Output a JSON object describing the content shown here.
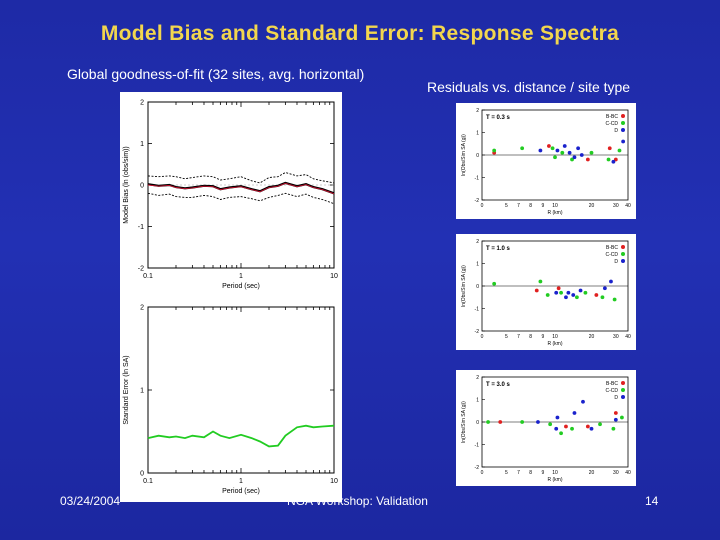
{
  "slide": {
    "title": "Model Bias and Standard Error:  Response Spectra",
    "subtitle_left": "Global goodness-of-fit (32 sites, avg. horizontal)",
    "subtitle_right": "Residuals vs. distance / site type",
    "footer_date": "03/24/2004",
    "footer_event": "NGA Workshop: Validation",
    "footer_page": "14"
  },
  "colors": {
    "background": "#1e2aa6",
    "title": "#f2d64e",
    "bias_line": "#000000",
    "bias_mean": "#c8102e",
    "stderr_line": "#22cc22",
    "site_BC": "#e02020",
    "site_CD": "#22cc22",
    "site_D": "#1a22cc"
  },
  "chart_data": [
    {
      "type": "line",
      "panel": "bias",
      "xlabel": "Period (sec)",
      "ylabel": "Model Bias (ln (obs/sim))",
      "x_scale": "log",
      "xlim": [
        0.1,
        10
      ],
      "ylim": [
        -2,
        2
      ],
      "xticks": [
        "0.1",
        "1",
        "10"
      ],
      "yticks": [
        "2",
        "1",
        "0",
        "-1",
        "-2"
      ],
      "x": [
        0.1,
        0.13,
        0.17,
        0.2,
        0.25,
        0.3,
        0.4,
        0.5,
        0.6,
        0.75,
        1.0,
        1.3,
        1.6,
        2.0,
        2.5,
        3.0,
        4.0,
        5.0,
        6.0,
        7.5,
        10.0
      ],
      "series": [
        {
          "role": "bias",
          "values": [
            0.02,
            -0.02,
            0.0,
            -0.05,
            -0.08,
            -0.06,
            -0.02,
            -0.03,
            -0.1,
            -0.06,
            -0.03,
            -0.1,
            -0.15,
            -0.05,
            -0.02,
            0.05,
            -0.03,
            0.02,
            -0.05,
            -0.1,
            -0.2
          ]
        },
        {
          "role": "upper",
          "values": [
            0.22,
            0.2,
            0.22,
            0.2,
            0.15,
            0.18,
            0.22,
            0.2,
            0.12,
            0.15,
            0.2,
            0.1,
            0.05,
            0.18,
            0.2,
            0.3,
            0.22,
            0.25,
            0.15,
            0.1,
            0.05
          ]
        },
        {
          "role": "lower",
          "values": [
            -0.2,
            -0.25,
            -0.22,
            -0.28,
            -0.3,
            -0.3,
            -0.25,
            -0.28,
            -0.35,
            -0.3,
            -0.28,
            -0.33,
            -0.38,
            -0.3,
            -0.25,
            -0.2,
            -0.28,
            -0.22,
            -0.3,
            -0.35,
            -0.45
          ]
        },
        {
          "role": "mean",
          "values": [
            0.0,
            -0.03,
            -0.01,
            -0.06,
            -0.09,
            -0.07,
            -0.03,
            -0.04,
            -0.11,
            -0.07,
            -0.04,
            -0.11,
            -0.16,
            -0.06,
            -0.03,
            0.04,
            -0.04,
            0.01,
            -0.06,
            -0.11,
            -0.21
          ]
        }
      ]
    },
    {
      "type": "line",
      "panel": "stderr",
      "xlabel": "Period (sec)",
      "ylabel": "Standard Error (ln SA)",
      "x_scale": "log",
      "xlim": [
        0.1,
        10
      ],
      "ylim": [
        0,
        2
      ],
      "xticks": [
        "0.1",
        "1",
        "10"
      ],
      "yticks": [
        "2",
        "1",
        "0"
      ],
      "x": [
        0.1,
        0.13,
        0.17,
        0.2,
        0.25,
        0.3,
        0.4,
        0.5,
        0.6,
        0.75,
        1.0,
        1.3,
        1.6,
        2.0,
        2.5,
        3.0,
        4.0,
        5.0,
        6.0,
        7.5,
        10.0
      ],
      "series": [
        {
          "role": "stderr",
          "values": [
            0.42,
            0.45,
            0.43,
            0.44,
            0.42,
            0.45,
            0.43,
            0.5,
            0.45,
            0.42,
            0.46,
            0.42,
            0.38,
            0.32,
            0.33,
            0.45,
            0.55,
            0.57,
            0.55,
            0.56,
            0.57
          ]
        }
      ]
    },
    {
      "type": "scatter",
      "panel": "resid1",
      "annotation": "T = 0.3 s",
      "xlabel": "R (km)",
      "ylabel": "ln(Obs/Sim SA (g))",
      "xlim": [
        0,
        12
      ],
      "ylim": [
        -2,
        2
      ],
      "xticks": [
        "0",
        "5",
        "7",
        "8",
        "9",
        "10",
        "20",
        "30",
        "40"
      ],
      "yticks": [
        "2",
        "1",
        "0",
        "-1",
        "-2"
      ],
      "legend": [
        "B-BC",
        "C-CD",
        "D"
      ],
      "points": {
        "B-BC": [
          [
            1,
            0.1
          ],
          [
            5.5,
            0.4
          ],
          [
            8.7,
            -0.2
          ],
          [
            10.5,
            0.3
          ],
          [
            11,
            -0.2
          ]
        ],
        "C-CD": [
          [
            1,
            0.2
          ],
          [
            3.3,
            0.3
          ],
          [
            5.8,
            0.3
          ],
          [
            6,
            -0.1
          ],
          [
            6.6,
            0.1
          ],
          [
            7.4,
            -0.2
          ],
          [
            9,
            0.1
          ],
          [
            10.4,
            -0.2
          ],
          [
            11.3,
            0.2
          ]
        ],
        "D": [
          [
            4.8,
            0.2
          ],
          [
            6.2,
            0.2
          ],
          [
            6.8,
            0.4
          ],
          [
            7.2,
            0.1
          ],
          [
            7.6,
            -0.1
          ],
          [
            7.9,
            0.3
          ],
          [
            8.2,
            0.0
          ],
          [
            10.8,
            -0.3
          ],
          [
            11.6,
            0.6
          ]
        ]
      }
    },
    {
      "type": "scatter",
      "panel": "resid2",
      "annotation": "T = 1.0 s",
      "xlabel": "R (km)",
      "ylabel": "ln(Obs/Sim SA (g))",
      "xlim": [
        0,
        12
      ],
      "ylim": [
        -2,
        2
      ],
      "xticks": [
        "0",
        "5",
        "7",
        "8",
        "9",
        "10",
        "20",
        "30",
        "40"
      ],
      "yticks": [
        "2",
        "1",
        "0",
        "-1",
        "-2"
      ],
      "legend": [
        "B-BC",
        "C-CD",
        "D"
      ],
      "points": {
        "B-BC": [
          [
            4.5,
            -0.2
          ],
          [
            6.3,
            -0.1
          ],
          [
            9.4,
            -0.4
          ]
        ],
        "C-CD": [
          [
            1,
            0.1
          ],
          [
            4.8,
            0.2
          ],
          [
            5.4,
            -0.4
          ],
          [
            6.5,
            -0.3
          ],
          [
            7.8,
            -0.5
          ],
          [
            8.5,
            -0.3
          ],
          [
            9.9,
            -0.5
          ],
          [
            10.9,
            -0.6
          ]
        ],
        "D": [
          [
            6.1,
            -0.3
          ],
          [
            6.9,
            -0.5
          ],
          [
            7.1,
            -0.3
          ],
          [
            7.5,
            -0.4
          ],
          [
            8.1,
            -0.2
          ],
          [
            10.1,
            -0.1
          ],
          [
            10.6,
            0.2
          ]
        ]
      }
    },
    {
      "type": "scatter",
      "panel": "resid3",
      "annotation": "T = 3.0 s",
      "xlabel": "R (km)",
      "ylabel": "ln(Obs/Sim SA (g))",
      "xlim": [
        0,
        12
      ],
      "ylim": [
        -2,
        2
      ],
      "xticks": [
        "0",
        "5",
        "7",
        "8",
        "9",
        "10",
        "20",
        "30",
        "40"
      ],
      "yticks": [
        "2",
        "1",
        "0",
        "-1",
        "-2"
      ],
      "legend": [
        "B-BC",
        "C-CD",
        "D"
      ],
      "points": {
        "B-BC": [
          [
            1.5,
            0.0
          ],
          [
            6.9,
            -0.2
          ],
          [
            8.7,
            -0.2
          ],
          [
            11,
            0.4
          ]
        ],
        "C-CD": [
          [
            0.5,
            0.0
          ],
          [
            3.3,
            0.0
          ],
          [
            5.6,
            -0.1
          ],
          [
            6.5,
            -0.5
          ],
          [
            7.4,
            -0.3
          ],
          [
            9.7,
            -0.1
          ],
          [
            10.8,
            -0.3
          ],
          [
            11.5,
            0.2
          ]
        ],
        "D": [
          [
            4.6,
            0.0
          ],
          [
            6.2,
            0.2
          ],
          [
            6.1,
            -0.3
          ],
          [
            7.6,
            0.4
          ],
          [
            8.3,
            0.9
          ],
          [
            9,
            -0.3
          ],
          [
            11,
            0.1
          ]
        ]
      }
    }
  ]
}
